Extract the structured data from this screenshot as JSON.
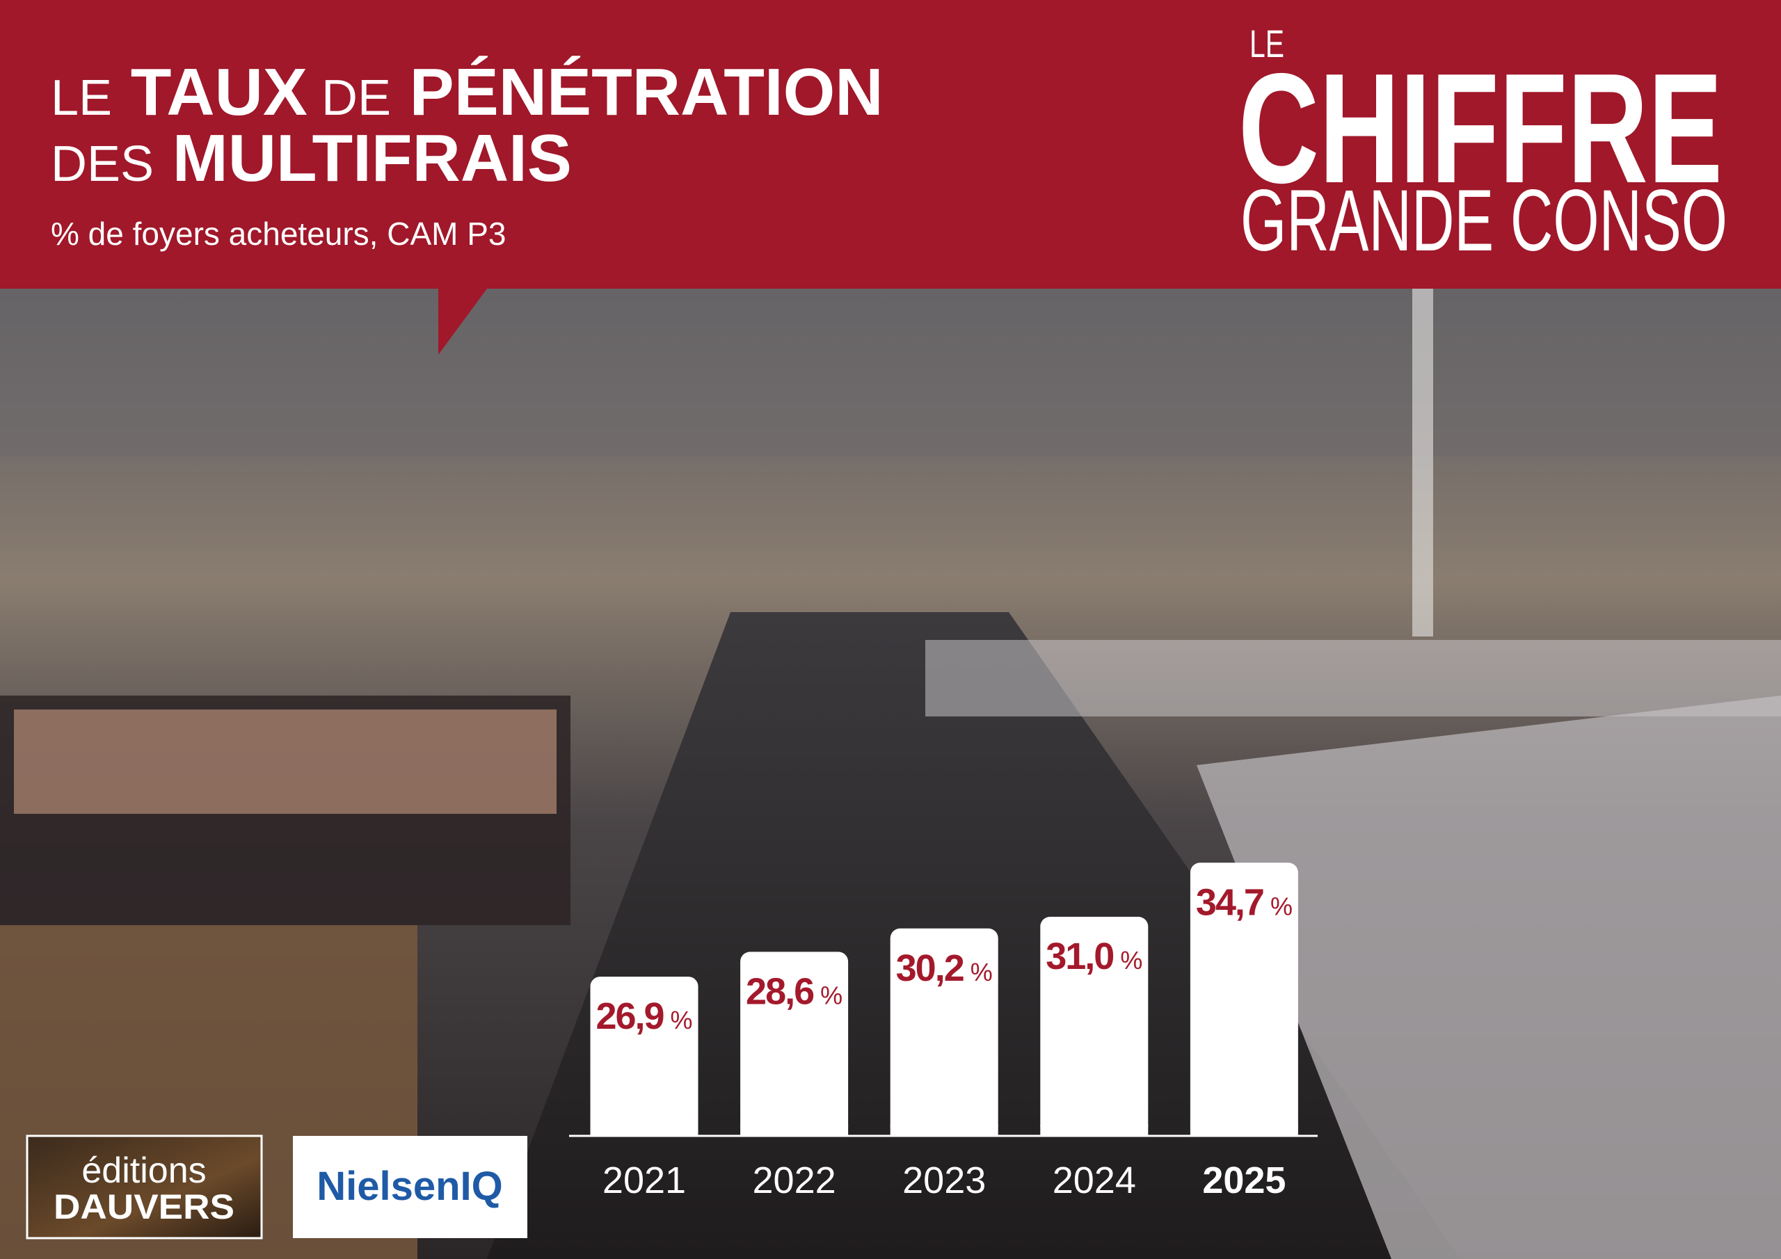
{
  "chart_data": {
    "type": "bar",
    "title": [
      "LE TAUX DE PÉNÉTRATION",
      "DES MULTIFRAIS"
    ],
    "subtitle": "% de foyers acheteurs, CAM P3",
    "brand": {
      "small": "LE",
      "main": "CHIFFRE",
      "sub": "GRANDE CONSO"
    },
    "logos": {
      "publisher": [
        "éditions",
        "DAUVERS"
      ],
      "source": "NielsenIQ"
    },
    "categories": [
      "2021",
      "2022",
      "2023",
      "2024",
      "2025"
    ],
    "values": [
      26.9,
      28.6,
      30.2,
      31.0,
      34.7
    ],
    "value_labels": [
      "26,9 %",
      "28,6 %",
      "30,2 %",
      "31,0 %",
      "34,7 %"
    ],
    "color": "#ffffff",
    "label_color": "#a3192b",
    "ylim": [
      16,
      40
    ]
  }
}
